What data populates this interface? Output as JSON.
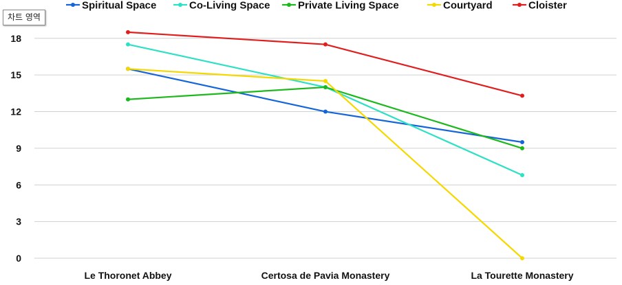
{
  "tooltip": {
    "text": "차트 영역"
  },
  "chart_data": {
    "type": "line",
    "title": "",
    "xlabel": "",
    "ylabel": "",
    "categories": [
      "Le Thoronet Abbey",
      "Certosa de Pavia Monastery",
      "La Tourette Monastery"
    ],
    "ylim": [
      0,
      19
    ],
    "yticks": [
      0,
      3,
      6,
      9,
      12,
      15,
      18
    ],
    "grid": "horizontal",
    "legend_position": "top",
    "series": [
      {
        "name": "Spiritual Space",
        "color": "#1565d8",
        "values": [
          15.5,
          12,
          9.5
        ]
      },
      {
        "name": "Co-Living Space",
        "color": "#2ee0c4",
        "values": [
          17.5,
          14,
          6.8
        ]
      },
      {
        "name": "Private Living Space",
        "color": "#1cb81c",
        "values": [
          13,
          14,
          9
        ]
      },
      {
        "name": "Courtyard",
        "color": "#f5d800",
        "values": [
          15.5,
          14.5,
          0
        ]
      },
      {
        "name": "Cloister",
        "color": "#e01e1e",
        "values": [
          18.5,
          17.5,
          13.3
        ]
      }
    ]
  }
}
